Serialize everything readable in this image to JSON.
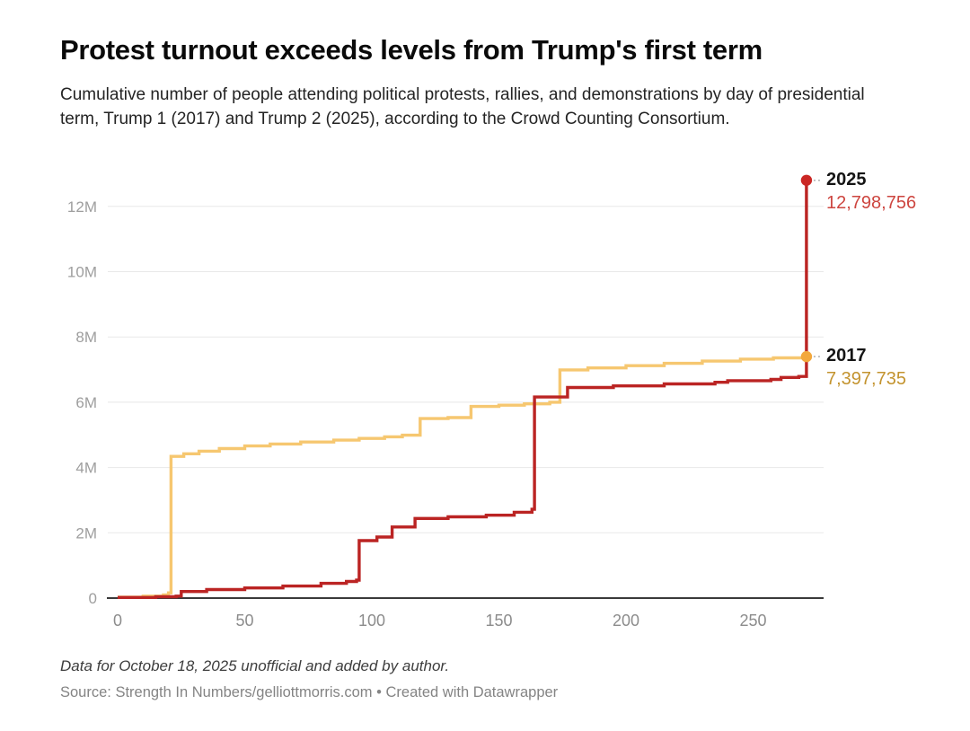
{
  "header": {
    "title": "Protest turnout exceeds levels from Trump's first term",
    "subtitle": "Cumulative number of people attending political protests, rallies, and demonstrations by day of presidential term, Trump 1 (2017) and Trump 2 (2025), according to the Crowd Counting Consortium."
  },
  "annotations": {
    "s2025": {
      "year": "2025",
      "value": "12,798,756"
    },
    "s2017": {
      "year": "2017",
      "value": "7,397,735"
    }
  },
  "footer": {
    "note": "Data for October 18, 2025 unofficial and added by author.",
    "source": "Source: Strength In Numbers/gelliottmorris.com • Created with Datawrapper"
  },
  "colors": {
    "red_line": "#bb2423",
    "red_dot": "#cb2724",
    "red_value_text": "#cd453f",
    "gold_line": "#f6c770",
    "gold_dot": "#f3a83d",
    "gold_value_text": "#c3932e",
    "gridline": "#e8e8e8",
    "axis_line": "#3a3a3a",
    "y_tick_text": "#9e9e9e",
    "x_tick_text": "#8c8c8c"
  },
  "chart_data": {
    "type": "line",
    "title": "Protest turnout exceeds levels from Trump's first term",
    "xlabel": "",
    "ylabel": "",
    "xlim": [
      0,
      280
    ],
    "ylim": [
      0,
      13000000
    ],
    "grid": "horizontal",
    "legend_position": "end-of-line-labels",
    "x_ticks": [
      0,
      50,
      100,
      150,
      200,
      250
    ],
    "y_ticks": [
      {
        "value": 0,
        "label": "0"
      },
      {
        "value": 2,
        "label": "2M"
      },
      {
        "value": 4,
        "label": "4M"
      },
      {
        "value": 6,
        "label": "6M"
      },
      {
        "value": 8,
        "label": "8M"
      },
      {
        "value": 10,
        "label": "10M"
      },
      {
        "value": 12,
        "label": "12M"
      }
    ],
    "units": "cumulative attendees, day values in days of presidential term, y values in millions",
    "series": [
      {
        "name": "2017",
        "color": "#f6c770",
        "dot_color": "#f3a83d",
        "final_value": 7397735,
        "final_label": "7,397,735",
        "points": [
          [
            0,
            0.03
          ],
          [
            10,
            0.06
          ],
          [
            18,
            0.1
          ],
          [
            20,
            0.16
          ],
          [
            21,
            4.34
          ],
          [
            26,
            4.42
          ],
          [
            32,
            4.5
          ],
          [
            40,
            4.58
          ],
          [
            50,
            4.66
          ],
          [
            60,
            4.72
          ],
          [
            72,
            4.78
          ],
          [
            85,
            4.84
          ],
          [
            95,
            4.89
          ],
          [
            105,
            4.94
          ],
          [
            112,
            4.99
          ],
          [
            119,
            5.5
          ],
          [
            130,
            5.53
          ],
          [
            139,
            5.87
          ],
          [
            150,
            5.91
          ],
          [
            160,
            5.95
          ],
          [
            170,
            6.0
          ],
          [
            174,
            6.99
          ],
          [
            185,
            7.05
          ],
          [
            200,
            7.12
          ],
          [
            215,
            7.19
          ],
          [
            230,
            7.26
          ],
          [
            245,
            7.32
          ],
          [
            258,
            7.36
          ],
          [
            271,
            7.397735
          ]
        ]
      },
      {
        "name": "2025",
        "color": "#bb2423",
        "dot_color": "#cb2724",
        "final_value": 12798756,
        "final_label": "12,798,756",
        "points": [
          [
            0,
            0.02
          ],
          [
            15,
            0.04
          ],
          [
            23,
            0.06
          ],
          [
            25,
            0.2
          ],
          [
            35,
            0.26
          ],
          [
            50,
            0.31
          ],
          [
            65,
            0.37
          ],
          [
            80,
            0.45
          ],
          [
            90,
            0.51
          ],
          [
            94,
            0.55
          ],
          [
            95,
            1.76
          ],
          [
            102,
            1.87
          ],
          [
            108,
            2.18
          ],
          [
            117,
            2.44
          ],
          [
            130,
            2.49
          ],
          [
            145,
            2.54
          ],
          [
            156,
            2.63
          ],
          [
            163,
            2.72
          ],
          [
            164,
            6.16
          ],
          [
            177,
            6.45
          ],
          [
            195,
            6.5
          ],
          [
            215,
            6.56
          ],
          [
            235,
            6.61
          ],
          [
            240,
            6.66
          ],
          [
            257,
            6.7
          ],
          [
            261,
            6.76
          ],
          [
            268,
            6.79
          ],
          [
            271,
            12.798756
          ]
        ]
      }
    ]
  }
}
